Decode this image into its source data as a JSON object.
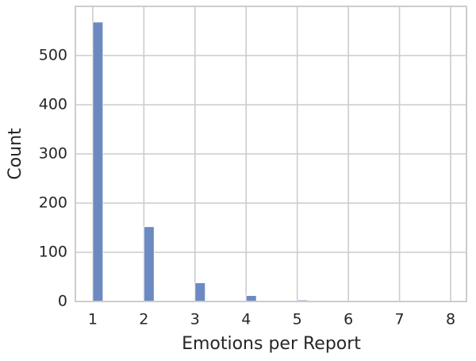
{
  "chart_data": {
    "type": "histogram",
    "xlabel": "Emotions per Report",
    "ylabel": "Count",
    "bins": [
      1,
      1.2,
      1.4,
      1.6,
      1.8,
      2,
      2.2,
      2.4,
      2.6,
      2.8,
      3,
      3.2,
      3.4,
      3.6,
      3.8,
      4,
      4.2,
      4.4,
      4.6,
      4.8,
      5,
      5.2,
      5.4,
      5.6,
      5.8,
      6,
      6.2,
      6.4,
      6.6,
      6.8,
      7,
      7.2,
      7.4,
      7.6,
      7.8,
      8
    ],
    "values": [
      568,
      0,
      0,
      0,
      0,
      152,
      0,
      0,
      0,
      0,
      38,
      0,
      0,
      0,
      0,
      12,
      0,
      0,
      0,
      0,
      3,
      0,
      0,
      0,
      0,
      1,
      0,
      0,
      0,
      0,
      1,
      0,
      0,
      0,
      1
    ],
    "color": "#6c8ac1",
    "xlim": [
      0.66,
      8.31
    ],
    "ylim": [
      0,
      600
    ],
    "xticks": [
      1,
      2,
      3,
      4,
      5,
      6,
      7,
      8
    ],
    "yticks": [
      0,
      100,
      200,
      300,
      400,
      500
    ],
    "grid": true
  }
}
